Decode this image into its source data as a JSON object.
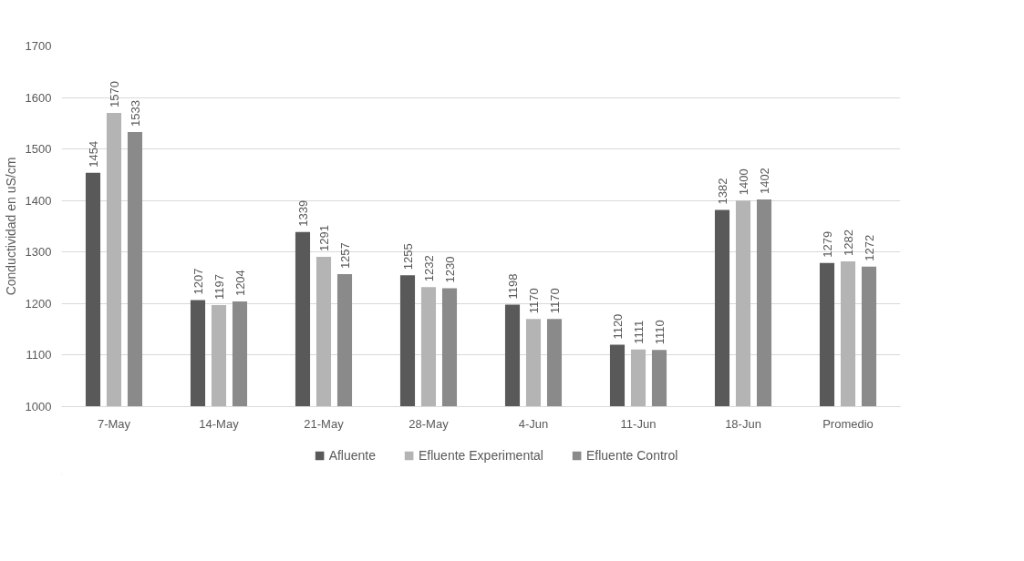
{
  "chart_data": {
    "type": "bar",
    "ylabel": "Conductividad en uS/cm",
    "categories": [
      "7-May",
      "14-May",
      "21-May",
      "28-May",
      "4-Jun",
      "11-Jun",
      "18-Jun",
      "Promedio"
    ],
    "series": [
      {
        "name": "Afluente",
        "color": "#595959",
        "values": [
          1454,
          1207,
          1339,
          1255,
          1198,
          1120,
          1382,
          1279
        ]
      },
      {
        "name": "Efluente Experimental",
        "color": "#b4b4b4",
        "values": [
          1570,
          1197,
          1291,
          1232,
          1170,
          1111,
          1400,
          1282
        ]
      },
      {
        "name": "Efluente Control",
        "color": "#8a8a8a",
        "values": [
          1533,
          1204,
          1257,
          1230,
          1170,
          1110,
          1402,
          1272
        ]
      }
    ],
    "ylim": [
      1000,
      1700
    ],
    "yticks": [
      1000,
      1100,
      1200,
      1300,
      1400,
      1500,
      1600,
      1700
    ],
    "grid": "y",
    "legend": "bottom",
    "data_labels": true
  }
}
